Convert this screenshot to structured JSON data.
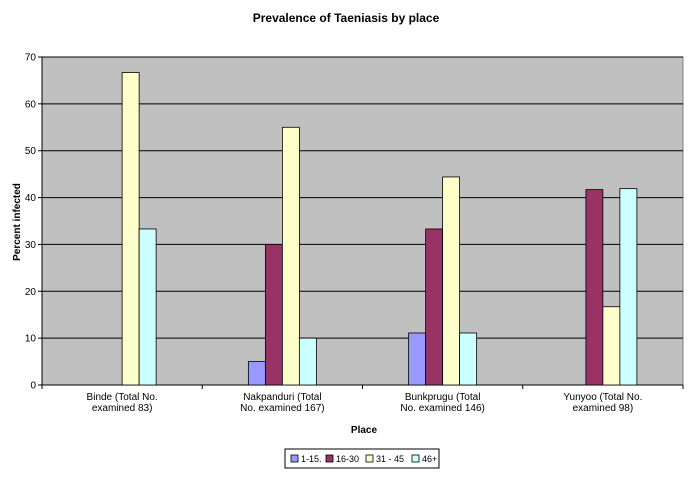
{
  "chart_data": {
    "type": "bar",
    "title": "Prevalence of Taeniasis by place",
    "xlabel": "Place",
    "ylabel": "Percent infected",
    "ylim": [
      0,
      70
    ],
    "yticks": [
      0,
      10,
      20,
      30,
      40,
      50,
      60,
      70
    ],
    "grid": true,
    "legend_position": "bottom",
    "categories": [
      [
        "Binde (Total No.",
        "examined 83)"
      ],
      [
        "Nakpanduri (Total",
        "No. examined  167)"
      ],
      [
        "Bunkprugu (Total",
        "No. examined 146)"
      ],
      [
        "Yunyoo (Total No.",
        "examined 98)"
      ]
    ],
    "series": [
      {
        "name": "1-15.",
        "color": "#9999ff",
        "values": [
          0,
          5,
          11.1,
          0
        ]
      },
      {
        "name": "16-30",
        "color": "#993366",
        "values": [
          0,
          30,
          33.3,
          41.7
        ]
      },
      {
        "name": "31 - 45",
        "color": "#ffffcc",
        "values": [
          66.7,
          55,
          44.4,
          16.7
        ]
      },
      {
        "name": "46+",
        "color": "#ccffff",
        "values": [
          33.3,
          10,
          11.1,
          41.9
        ]
      }
    ],
    "plot_background": "#c0c0c0"
  }
}
